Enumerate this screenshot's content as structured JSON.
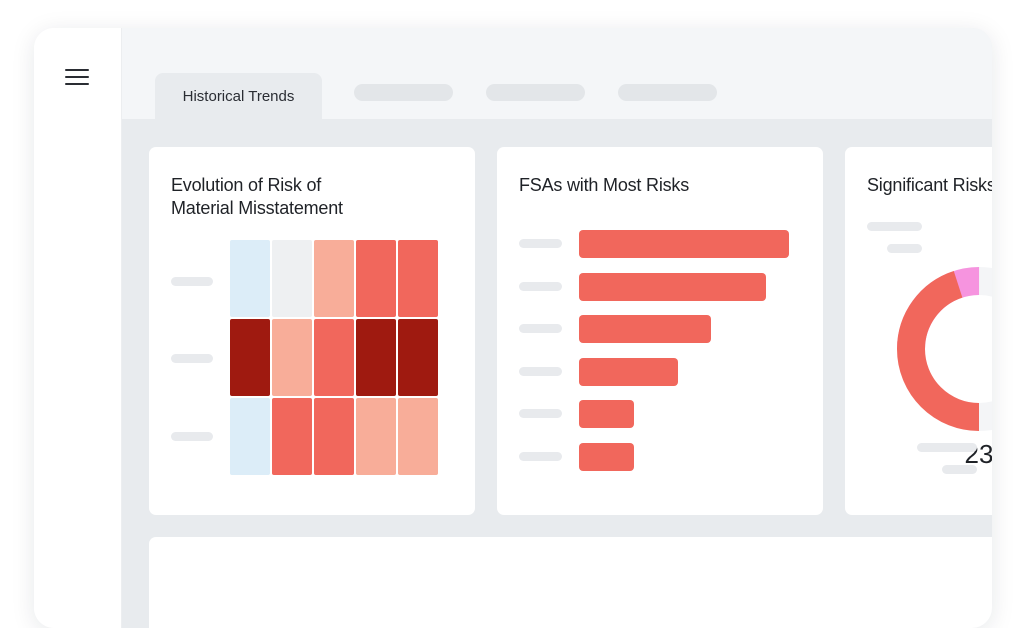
{
  "header": {
    "menu_icon": "hamburger-menu-icon",
    "tabs": [
      {
        "label": "Historical Trends",
        "active": true
      },
      {
        "label": "",
        "placeholder": true
      },
      {
        "label": "",
        "placeholder": true
      },
      {
        "label": "",
        "placeholder": true
      }
    ]
  },
  "colors": {
    "heat_very_low": "#dcedf8",
    "heat_neutral": "#eef0f2",
    "heat_low": "#f8ad99",
    "heat_medium": "#f1675c",
    "heat_high": "#9f1a10",
    "bar": "#f1675c",
    "donut_pink": "#f694df",
    "donut_red": "#f1675c"
  },
  "cards": {
    "rmm": {
      "title": "Evolution of Risk of\nMaterial Misstatement",
      "heatmap": [
        [
          "heat_very_low",
          "heat_neutral",
          "heat_low",
          "heat_medium",
          "heat_medium"
        ],
        [
          "heat_high",
          "heat_low",
          "heat_medium",
          "heat_high",
          "heat_high"
        ],
        [
          "heat_very_low",
          "heat_medium",
          "heat_medium",
          "heat_low",
          "heat_low"
        ]
      ]
    },
    "fsa": {
      "title": "FSAs with Most Risks",
      "bar_fractions": [
        1.0,
        0.89,
        0.63,
        0.47,
        0.26,
        0.26
      ]
    },
    "significant": {
      "title": "Significant Risks",
      "donut_value": "23",
      "donut_segments": [
        {
          "color": "donut_pink",
          "fraction": 0.25
        },
        {
          "color": "donut_red",
          "fraction": 0.45
        }
      ]
    }
  }
}
